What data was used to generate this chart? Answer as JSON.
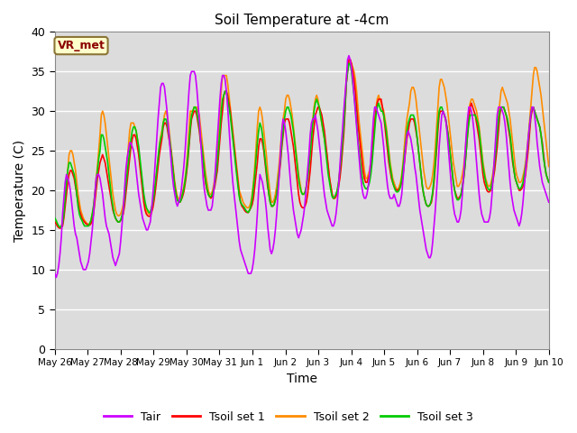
{
  "title": "Soil Temperature at -4cm",
  "xlabel": "Time",
  "ylabel": "Temperature (C)",
  "ylim": [
    0,
    40
  ],
  "yticks": [
    0,
    5,
    10,
    15,
    20,
    25,
    30,
    35,
    40
  ],
  "xtick_labels": [
    "May 26",
    "May 27",
    "May 28",
    "May 29",
    "May 30",
    "May 31",
    "Jun 1",
    "Jun 2",
    "Jun 3",
    "Jun 4",
    "Jun 5",
    "Jun 6",
    "Jun 7",
    "Jun 8",
    "Jun 9",
    "Jun 10"
  ],
  "annotation_text": "VR_met",
  "annotation_color": "#8B0000",
  "annotation_bg": "#FFFFCC",
  "bg_color": "#DCDCDC",
  "line_colors": {
    "Tair": "#CC00FF",
    "Tsoil1": "#FF0000",
    "Tsoil2": "#FF8C00",
    "Tsoil3": "#00CC00"
  },
  "legend_labels": [
    "Tair",
    "Tsoil set 1",
    "Tsoil set 2",
    "Tsoil set 3"
  ],
  "Tair": [
    9.5,
    9.0,
    9.5,
    10.5,
    12.0,
    14.0,
    17.0,
    19.0,
    21.0,
    22.0,
    21.5,
    21.0,
    20.0,
    18.5,
    17.0,
    15.5,
    14.5,
    14.0,
    13.0,
    12.0,
    11.0,
    10.5,
    10.0,
    10.0,
    10.0,
    10.5,
    11.0,
    12.0,
    13.5,
    15.0,
    17.0,
    19.5,
    21.5,
    22.0,
    22.0,
    21.5,
    20.5,
    19.5,
    18.0,
    16.5,
    15.5,
    15.0,
    14.5,
    13.5,
    12.5,
    11.5,
    11.0,
    10.5,
    11.0,
    11.5,
    12.0,
    13.5,
    15.5,
    17.5,
    20.0,
    22.5,
    24.0,
    25.0,
    26.0,
    26.0,
    25.5,
    25.0,
    24.0,
    22.5,
    21.0,
    19.5,
    18.5,
    17.5,
    16.5,
    16.0,
    15.5,
    15.0,
    15.0,
    15.5,
    16.0,
    17.5,
    19.5,
    21.5,
    24.0,
    26.5,
    29.0,
    31.0,
    33.0,
    33.5,
    33.5,
    33.0,
    31.5,
    30.0,
    28.0,
    26.0,
    24.0,
    22.0,
    20.5,
    19.5,
    18.5,
    18.0,
    18.5,
    19.0,
    20.0,
    21.5,
    23.0,
    25.0,
    27.5,
    30.0,
    32.5,
    34.5,
    35.0,
    35.0,
    35.0,
    34.5,
    33.0,
    31.0,
    29.0,
    26.5,
    24.0,
    21.5,
    20.0,
    19.0,
    18.0,
    17.5,
    17.5,
    17.5,
    18.0,
    19.5,
    21.5,
    24.0,
    26.5,
    29.0,
    31.5,
    33.5,
    34.5,
    34.5,
    34.0,
    32.5,
    30.5,
    28.0,
    25.5,
    23.0,
    21.0,
    19.5,
    18.0,
    16.5,
    15.0,
    13.5,
    12.5,
    12.0,
    11.5,
    11.0,
    10.5,
    10.0,
    9.5,
    9.5,
    9.5,
    10.0,
    11.0,
    12.5,
    14.5,
    17.0,
    20.0,
    22.0,
    21.5,
    21.0,
    20.0,
    19.0,
    17.5,
    15.5,
    14.0,
    12.5,
    12.0,
    12.5,
    13.5,
    15.0,
    17.0,
    19.5,
    22.0,
    25.0,
    27.5,
    29.0,
    28.5,
    27.5,
    26.0,
    24.5,
    22.5,
    20.5,
    19.0,
    17.5,
    16.5,
    15.5,
    14.5,
    14.0,
    14.5,
    15.0,
    16.0,
    17.0,
    18.5,
    20.5,
    22.5,
    24.5,
    27.0,
    28.5,
    29.0,
    29.0,
    29.5,
    28.5,
    27.5,
    26.0,
    24.5,
    22.5,
    21.0,
    19.5,
    18.5,
    17.5,
    17.0,
    16.5,
    16.0,
    15.5,
    15.5,
    16.0,
    17.0,
    18.5,
    20.5,
    23.0,
    25.5,
    27.5,
    30.0,
    32.0,
    34.0,
    36.5,
    37.0,
    36.5,
    35.5,
    34.0,
    32.0,
    30.0,
    28.0,
    26.0,
    24.0,
    22.0,
    20.5,
    19.5,
    19.0,
    19.0,
    19.5,
    20.5,
    22.0,
    24.0,
    26.5,
    29.0,
    30.5,
    30.5,
    30.0,
    29.5,
    29.0,
    28.5,
    27.0,
    25.5,
    23.5,
    22.0,
    20.5,
    19.5,
    19.0,
    19.0,
    19.0,
    19.5,
    19.0,
    18.5,
    18.0,
    18.0,
    18.5,
    19.5,
    21.5,
    23.5,
    25.5,
    27.0,
    27.5,
    27.0,
    26.5,
    25.5,
    24.5,
    23.0,
    22.0,
    20.5,
    19.0,
    17.5,
    16.5,
    15.5,
    14.5,
    13.5,
    12.5,
    12.0,
    11.5,
    11.5,
    12.0,
    13.5,
    15.5,
    17.5,
    20.0,
    22.5,
    25.5,
    27.5,
    29.5,
    30.0,
    29.5,
    29.0,
    27.5,
    25.5,
    23.5,
    21.5,
    19.5,
    18.0,
    17.0,
    16.5,
    16.0,
    16.0,
    16.5,
    17.5,
    19.5,
    22.0,
    24.5,
    27.0,
    29.0,
    30.5,
    30.5,
    30.0,
    29.0,
    27.5,
    25.5,
    23.5,
    21.5,
    19.5,
    18.0,
    17.0,
    16.5,
    16.0,
    16.0,
    16.0,
    16.0,
    16.5,
    17.5,
    19.5,
    22.0,
    24.5,
    27.0,
    29.5,
    30.5,
    30.5,
    30.5,
    30.0,
    29.5,
    28.5,
    27.0,
    25.0,
    23.0,
    21.0,
    19.5,
    18.5,
    17.5,
    17.0,
    16.5,
    16.0,
    15.5,
    16.0,
    17.0,
    18.5,
    20.5,
    22.5,
    24.5,
    26.5,
    28.0,
    29.5,
    30.5,
    30.5,
    29.5,
    28.0,
    26.0,
    24.5,
    23.0,
    22.0,
    21.0,
    20.5,
    20.0,
    19.5,
    19.0,
    18.5
  ],
  "Tsoil1": [
    16.0,
    15.8,
    15.5,
    15.3,
    15.2,
    15.3,
    15.5,
    16.5,
    18.0,
    19.5,
    21.0,
    22.0,
    22.5,
    22.5,
    22.0,
    21.5,
    20.5,
    19.5,
    18.5,
    17.5,
    17.0,
    16.5,
    16.2,
    16.0,
    15.8,
    15.7,
    15.6,
    15.6,
    15.8,
    16.2,
    17.0,
    18.5,
    20.0,
    21.5,
    22.5,
    23.5,
    24.0,
    24.5,
    24.0,
    23.5,
    22.5,
    21.5,
    20.5,
    19.5,
    18.5,
    17.5,
    17.0,
    16.5,
    16.2,
    16.0,
    16.0,
    16.2,
    16.5,
    17.0,
    18.0,
    19.5,
    21.0,
    22.5,
    24.0,
    25.5,
    26.5,
    27.0,
    27.0,
    26.5,
    25.5,
    24.5,
    23.0,
    21.5,
    20.0,
    18.5,
    17.5,
    17.0,
    16.8,
    16.7,
    16.8,
    17.2,
    17.8,
    18.8,
    20.0,
    21.5,
    23.0,
    24.5,
    25.5,
    26.5,
    28.0,
    28.5,
    28.5,
    28.0,
    27.0,
    26.0,
    25.0,
    23.5,
    22.0,
    20.5,
    19.5,
    18.8,
    18.5,
    18.5,
    18.8,
    19.2,
    19.8,
    20.8,
    22.0,
    23.5,
    25.5,
    27.5,
    29.0,
    29.5,
    30.0,
    30.0,
    29.5,
    28.5,
    27.5,
    26.0,
    25.0,
    23.5,
    22.0,
    20.8,
    20.0,
    19.5,
    19.2,
    19.0,
    19.2,
    19.8,
    20.5,
    21.5,
    22.5,
    24.5,
    26.5,
    28.5,
    30.0,
    32.0,
    32.5,
    32.5,
    32.0,
    31.0,
    30.0,
    28.5,
    27.0,
    25.5,
    24.0,
    22.5,
    21.0,
    19.5,
    18.5,
    18.0,
    17.8,
    17.5,
    17.3,
    17.2,
    17.2,
    17.5,
    17.8,
    18.2,
    19.0,
    20.5,
    22.0,
    23.5,
    25.5,
    26.5,
    26.5,
    26.0,
    25.0,
    23.5,
    22.0,
    20.5,
    19.5,
    18.5,
    18.0,
    18.0,
    18.2,
    18.8,
    19.5,
    20.5,
    22.0,
    23.5,
    25.5,
    27.0,
    28.5,
    29.0,
    29.0,
    29.0,
    28.5,
    27.5,
    26.5,
    25.5,
    24.0,
    22.5,
    21.0,
    19.5,
    18.5,
    18.0,
    17.8,
    17.8,
    18.0,
    18.5,
    19.5,
    21.0,
    22.5,
    24.5,
    26.5,
    28.0,
    29.5,
    30.0,
    30.5,
    30.5,
    30.0,
    29.5,
    28.5,
    27.5,
    26.0,
    24.5,
    23.0,
    21.5,
    20.5,
    19.5,
    19.0,
    19.0,
    19.2,
    19.8,
    20.5,
    21.5,
    23.0,
    25.0,
    27.0,
    30.0,
    33.5,
    35.0,
    36.5,
    36.5,
    36.0,
    35.0,
    34.0,
    32.5,
    30.5,
    28.5,
    27.0,
    25.5,
    24.0,
    22.5,
    21.5,
    21.0,
    21.0,
    21.5,
    22.0,
    23.0,
    24.5,
    26.5,
    28.5,
    30.0,
    31.0,
    31.5,
    31.5,
    31.5,
    30.5,
    29.5,
    28.0,
    26.5,
    25.0,
    23.5,
    22.5,
    21.5,
    21.0,
    20.5,
    20.2,
    20.0,
    20.0,
    20.2,
    20.5,
    21.0,
    22.0,
    23.5,
    25.0,
    26.5,
    27.5,
    28.5,
    29.0,
    29.0,
    29.0,
    28.5,
    27.5,
    26.5,
    25.0,
    23.5,
    22.0,
    20.5,
    19.5,
    18.8,
    18.2,
    18.0,
    18.0,
    18.2,
    18.5,
    19.5,
    21.0,
    23.0,
    25.0,
    27.5,
    29.5,
    30.0,
    30.0,
    30.0,
    29.5,
    29.0,
    28.0,
    27.0,
    25.5,
    24.0,
    22.5,
    21.0,
    20.0,
    19.5,
    19.0,
    19.0,
    19.2,
    19.5,
    20.5,
    21.5,
    23.0,
    25.0,
    27.0,
    29.0,
    30.5,
    31.0,
    30.5,
    30.0,
    29.5,
    28.5,
    27.5,
    26.5,
    25.0,
    23.5,
    22.0,
    21.0,
    20.5,
    20.0,
    19.8,
    19.8,
    20.0,
    20.5,
    21.5,
    22.5,
    24.0,
    25.5,
    27.5,
    29.5,
    30.5,
    30.5,
    30.5,
    30.0,
    29.5,
    28.5,
    27.5,
    26.5,
    25.0,
    23.5,
    22.5,
    21.5,
    21.0,
    20.5,
    20.0,
    20.0,
    20.2,
    20.5,
    21.0,
    22.0,
    23.5,
    25.0,
    27.0,
    29.0,
    30.0,
    30.5,
    30.0,
    29.5,
    29.0,
    28.5,
    28.0,
    27.0,
    26.0,
    24.5,
    23.0,
    22.0,
    21.5,
    21.0
  ],
  "Tsoil2": [
    16.0,
    15.8,
    15.5,
    15.3,
    15.3,
    15.5,
    16.0,
    17.5,
    19.5,
    21.0,
    22.5,
    24.5,
    25.0,
    25.0,
    24.5,
    23.5,
    22.5,
    21.0,
    19.5,
    18.5,
    17.5,
    17.0,
    16.5,
    16.2,
    16.0,
    15.8,
    15.7,
    15.8,
    16.2,
    17.0,
    18.0,
    19.5,
    21.5,
    23.0,
    25.0,
    27.0,
    29.5,
    30.0,
    29.5,
    28.5,
    27.0,
    25.5,
    24.0,
    22.5,
    21.0,
    19.5,
    18.5,
    17.5,
    17.0,
    16.8,
    16.8,
    17.0,
    17.5,
    18.2,
    19.5,
    21.5,
    23.5,
    25.5,
    27.5,
    28.5,
    28.5,
    28.5,
    28.0,
    27.5,
    26.5,
    25.0,
    23.5,
    22.0,
    20.5,
    19.0,
    18.0,
    17.5,
    17.2,
    17.0,
    17.2,
    17.8,
    18.5,
    19.5,
    21.0,
    22.5,
    24.0,
    25.5,
    26.8,
    27.5,
    28.5,
    29.5,
    30.0,
    29.5,
    28.5,
    27.0,
    25.5,
    24.0,
    22.5,
    21.0,
    20.0,
    19.2,
    19.0,
    19.0,
    19.2,
    19.8,
    20.5,
    21.5,
    23.0,
    25.0,
    27.5,
    30.0,
    30.0,
    30.0,
    30.5,
    30.5,
    30.5,
    30.0,
    29.5,
    28.0,
    26.5,
    25.0,
    23.5,
    22.0,
    21.0,
    20.0,
    19.5,
    19.5,
    19.8,
    20.5,
    21.5,
    23.0,
    25.0,
    27.5,
    30.0,
    32.5,
    34.5,
    34.5,
    34.5,
    34.5,
    33.5,
    32.0,
    30.5,
    29.0,
    27.5,
    26.0,
    24.5,
    23.0,
    21.5,
    20.0,
    19.5,
    19.0,
    18.5,
    18.2,
    18.0,
    17.8,
    17.8,
    18.0,
    18.5,
    19.5,
    21.0,
    23.0,
    25.5,
    28.0,
    30.0,
    30.5,
    30.0,
    29.0,
    27.5,
    26.0,
    24.5,
    22.5,
    21.0,
    19.5,
    18.5,
    18.5,
    18.8,
    19.5,
    20.5,
    22.0,
    23.5,
    25.5,
    27.5,
    29.0,
    30.0,
    31.5,
    32.0,
    32.0,
    31.5,
    30.5,
    29.5,
    28.0,
    26.5,
    25.0,
    23.5,
    22.0,
    21.0,
    20.0,
    19.5,
    19.5,
    19.8,
    20.5,
    21.5,
    23.0,
    25.0,
    27.0,
    29.0,
    30.5,
    31.5,
    32.0,
    31.5,
    30.5,
    29.5,
    28.5,
    27.5,
    26.5,
    25.5,
    24.5,
    23.0,
    21.5,
    20.5,
    19.5,
    19.0,
    19.0,
    19.5,
    20.0,
    21.0,
    22.5,
    24.0,
    26.0,
    28.5,
    31.5,
    34.0,
    35.5,
    36.0,
    36.5,
    36.0,
    35.5,
    35.0,
    34.0,
    32.5,
    30.5,
    28.5,
    27.0,
    25.5,
    24.0,
    22.5,
    21.5,
    21.5,
    22.0,
    22.5,
    23.5,
    25.0,
    27.0,
    29.0,
    30.5,
    31.5,
    32.0,
    31.5,
    31.0,
    30.5,
    30.0,
    29.0,
    28.0,
    26.5,
    25.0,
    23.5,
    22.5,
    21.5,
    21.0,
    20.5,
    20.2,
    20.0,
    20.5,
    21.0,
    22.0,
    23.5,
    25.5,
    27.5,
    29.0,
    30.0,
    31.0,
    32.5,
    33.0,
    33.0,
    32.5,
    31.5,
    30.0,
    28.5,
    27.0,
    25.5,
    24.0,
    22.5,
    21.5,
    20.5,
    20.2,
    20.2,
    20.5,
    21.0,
    22.0,
    23.5,
    25.5,
    28.0,
    30.5,
    33.0,
    34.0,
    34.0,
    33.5,
    33.0,
    32.0,
    31.0,
    29.5,
    28.0,
    26.5,
    25.0,
    23.5,
    22.5,
    21.5,
    20.5,
    20.5,
    20.8,
    21.2,
    22.0,
    23.0,
    24.5,
    26.5,
    28.5,
    30.0,
    31.0,
    31.5,
    31.5,
    31.0,
    30.5,
    30.0,
    29.0,
    28.0,
    26.5,
    25.0,
    23.5,
    22.5,
    21.5,
    21.0,
    20.5,
    20.5,
    20.8,
    21.5,
    22.5,
    24.0,
    25.5,
    27.5,
    29.5,
    31.0,
    32.5,
    33.0,
    32.5,
    32.0,
    31.5,
    31.0,
    30.0,
    29.0,
    27.5,
    26.0,
    24.5,
    23.0,
    22.0,
    21.5,
    21.0,
    21.0,
    21.2,
    21.8,
    22.5,
    23.5,
    25.0,
    26.5,
    28.5,
    30.5,
    32.5,
    34.5,
    35.5,
    35.5,
    35.0,
    34.0,
    33.0,
    32.0,
    30.5,
    29.0,
    27.5,
    26.0,
    24.5,
    23.0
  ],
  "Tsoil3": [
    16.5,
    16.2,
    15.8,
    15.5,
    15.3,
    15.5,
    15.8,
    17.0,
    19.0,
    21.0,
    22.5,
    23.5,
    23.5,
    23.0,
    22.5,
    22.0,
    21.0,
    19.5,
    18.0,
    17.0,
    16.5,
    16.2,
    15.8,
    15.5,
    15.5,
    15.5,
    15.5,
    15.8,
    16.2,
    17.0,
    18.0,
    19.5,
    21.0,
    22.5,
    24.0,
    25.0,
    27.0,
    27.0,
    26.5,
    25.5,
    24.5,
    23.5,
    22.0,
    20.5,
    19.0,
    18.0,
    17.0,
    16.5,
    16.2,
    16.0,
    16.0,
    16.2,
    16.8,
    17.5,
    18.8,
    20.5,
    22.0,
    23.5,
    25.0,
    26.5,
    27.5,
    28.0,
    28.0,
    27.5,
    26.5,
    25.5,
    24.0,
    22.5,
    21.0,
    19.5,
    18.5,
    17.8,
    17.5,
    17.2,
    17.2,
    17.8,
    18.5,
    19.5,
    21.0,
    22.5,
    24.0,
    25.5,
    26.5,
    27.0,
    28.5,
    29.0,
    29.0,
    28.5,
    27.5,
    26.5,
    25.0,
    23.5,
    22.0,
    20.5,
    19.5,
    18.8,
    18.5,
    18.5,
    18.8,
    19.5,
    20.2,
    21.2,
    22.5,
    24.0,
    26.0,
    28.0,
    29.5,
    30.0,
    30.5,
    30.5,
    30.0,
    29.0,
    28.0,
    26.5,
    25.5,
    24.0,
    22.5,
    21.2,
    20.2,
    19.5,
    19.2,
    19.2,
    19.5,
    20.0,
    21.0,
    22.0,
    23.5,
    25.5,
    27.5,
    30.0,
    31.5,
    32.0,
    32.5,
    32.5,
    31.5,
    30.5,
    29.5,
    28.0,
    26.5,
    25.0,
    23.5,
    22.0,
    20.5,
    19.2,
    18.5,
    18.2,
    18.0,
    17.8,
    17.5,
    17.3,
    17.2,
    17.5,
    18.0,
    19.0,
    20.5,
    22.0,
    24.0,
    26.0,
    27.5,
    28.5,
    28.0,
    27.0,
    25.5,
    24.0,
    22.5,
    21.0,
    19.5,
    18.5,
    18.0,
    18.0,
    18.2,
    18.8,
    19.5,
    21.0,
    22.5,
    24.0,
    26.0,
    27.5,
    29.0,
    30.0,
    30.5,
    30.5,
    30.0,
    29.5,
    28.5,
    27.5,
    26.0,
    24.5,
    23.0,
    21.5,
    20.5,
    19.8,
    19.5,
    19.5,
    19.8,
    20.5,
    21.5,
    23.0,
    24.5,
    26.5,
    28.5,
    30.0,
    31.0,
    31.5,
    31.0,
    30.5,
    29.5,
    28.5,
    27.5,
    26.5,
    25.0,
    23.5,
    22.0,
    21.0,
    20.0,
    19.2,
    19.0,
    19.2,
    19.5,
    20.0,
    21.0,
    22.5,
    24.0,
    26.0,
    28.0,
    30.5,
    33.5,
    35.0,
    36.0,
    36.0,
    35.0,
    33.5,
    32.0,
    30.5,
    28.5,
    26.5,
    25.0,
    23.5,
    22.0,
    21.0,
    20.5,
    20.2,
    20.2,
    20.5,
    21.0,
    22.0,
    23.5,
    25.5,
    27.5,
    29.5,
    30.5,
    31.0,
    30.5,
    30.0,
    30.0,
    29.5,
    28.5,
    27.5,
    26.0,
    24.5,
    23.0,
    22.0,
    21.0,
    20.5,
    20.0,
    19.8,
    19.8,
    20.0,
    20.5,
    21.5,
    23.0,
    24.5,
    26.0,
    27.5,
    28.5,
    29.0,
    29.5,
    29.5,
    29.5,
    29.0,
    28.0,
    26.5,
    25.0,
    23.5,
    22.0,
    20.5,
    19.5,
    18.8,
    18.2,
    18.0,
    18.0,
    18.2,
    18.8,
    19.8,
    21.5,
    23.5,
    26.0,
    28.5,
    30.0,
    30.5,
    30.5,
    30.0,
    29.5,
    29.0,
    28.0,
    27.0,
    25.5,
    24.0,
    22.5,
    21.0,
    20.0,
    19.2,
    18.8,
    18.8,
    19.0,
    19.5,
    20.5,
    21.5,
    23.0,
    25.0,
    27.0,
    28.5,
    29.5,
    29.5,
    29.5,
    29.5,
    29.5,
    29.0,
    28.5,
    27.5,
    26.0,
    24.5,
    23.0,
    22.0,
    21.2,
    20.5,
    20.2,
    20.0,
    20.2,
    21.0,
    22.0,
    23.5,
    25.0,
    27.0,
    29.0,
    30.0,
    30.5,
    30.5,
    30.5,
    30.0,
    29.5,
    29.0,
    28.0,
    27.0,
    25.5,
    24.0,
    22.5,
    21.5,
    21.0,
    20.5,
    20.2,
    20.2,
    20.5,
    21.0,
    22.0,
    23.0,
    24.5,
    26.0,
    28.0,
    29.5,
    30.5,
    30.5,
    30.0,
    29.5,
    29.0,
    28.5,
    28.0,
    27.0,
    25.5,
    24.0,
    23.0,
    22.0,
    21.5,
    21.0
  ]
}
